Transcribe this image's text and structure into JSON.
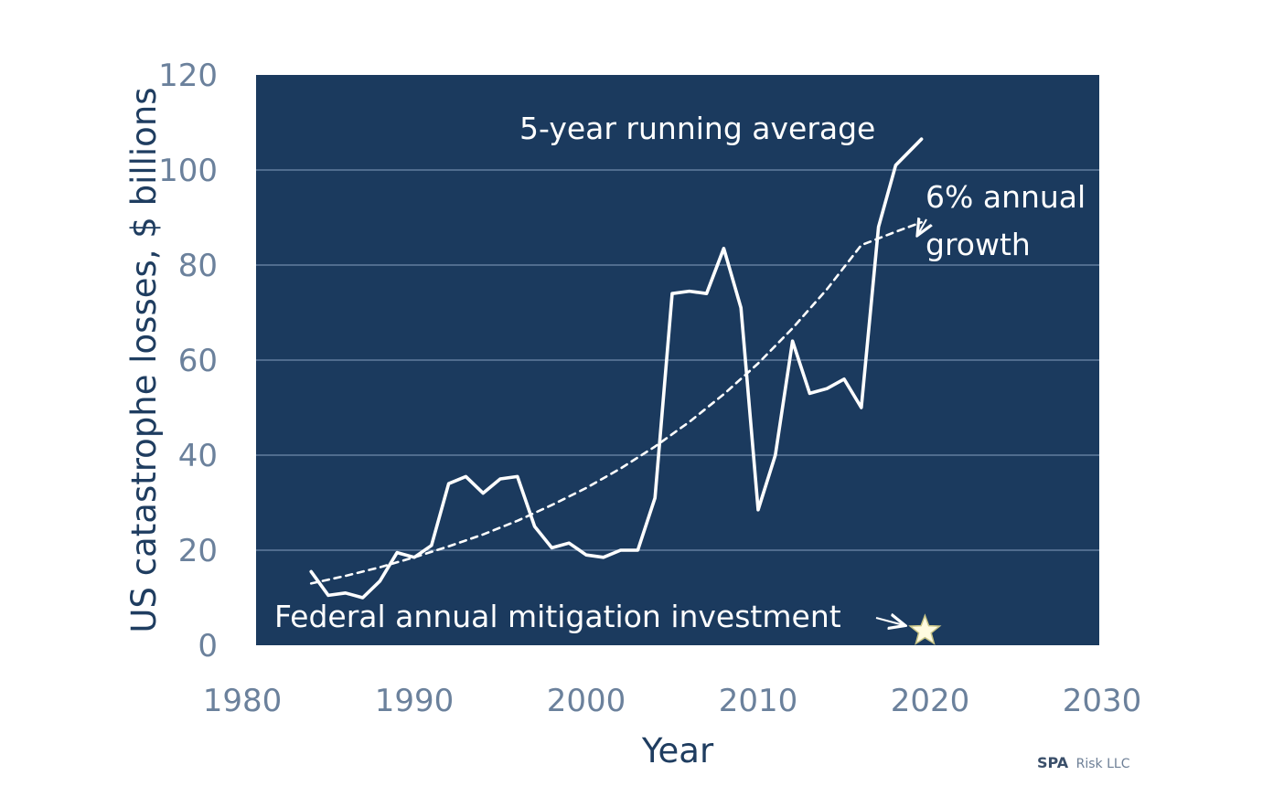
{
  "chart_data": {
    "type": "line",
    "xlabel": "Year",
    "ylabel": "US catastrophe losses, $ billions",
    "xlim": [
      1980,
      2030
    ],
    "ylim": [
      0,
      120
    ],
    "x_ticks": [
      "1980",
      "1990",
      "2000",
      "2010",
      "2020",
      "2030"
    ],
    "y_ticks": [
      "0",
      "20",
      "40",
      "60",
      "80",
      "100",
      "120"
    ],
    "grid": "horizontal",
    "background_color": "#1b3a5e",
    "series": [
      {
        "name": "5-year running average",
        "style": "solid",
        "color": "#ffffff",
        "x": [
          1984,
          1985,
          1986,
          1987,
          1988,
          1989,
          1990,
          1991,
          1992,
          1993,
          1994,
          1995,
          1996,
          1997,
          1998,
          1999,
          2000,
          2001,
          2002,
          2003,
          2004,
          2005,
          2006,
          2007,
          2008,
          2009,
          2010,
          2011,
          2012,
          2013,
          2014,
          2015,
          2016,
          2017,
          2018,
          2019.5
        ],
        "y": [
          15.5,
          10.5,
          11,
          10,
          13.5,
          19.5,
          18.5,
          21,
          34,
          35.5,
          32,
          35,
          35.5,
          25,
          20.5,
          21.5,
          19,
          18.5,
          20,
          20,
          31,
          74,
          74.5,
          74,
          83.5,
          71,
          28.5,
          40,
          64,
          53,
          54,
          56,
          50,
          88,
          101,
          106.5
        ]
      },
      {
        "name": "6% annual growth",
        "style": "dashed",
        "color": "#ffffff",
        "x": [
          1984,
          1986,
          1988,
          1990,
          1992,
          1994,
          1996,
          1998,
          2000,
          2002,
          2004,
          2006,
          2008,
          2010,
          2012,
          2014,
          2016,
          2018,
          2019.5
        ],
        "y": [
          13,
          14.6,
          16.4,
          18.5,
          20.8,
          23.3,
          26.2,
          29.5,
          33.1,
          37.2,
          41.8,
          47,
          52.8,
          59.3,
          66.7,
          74.9,
          84.2,
          87,
          89
        ]
      },
      {
        "name": "Federal annual mitigation investment",
        "style": "marker",
        "marker": "star",
        "color": "#fffbe0",
        "x": [
          2019.7
        ],
        "y": [
          3
        ]
      }
    ],
    "annotations": [
      "5-year running average",
      "6% annual growth",
      "Federal annual mitigation investment"
    ]
  },
  "labels": {
    "running_average": "5-year running average",
    "growth_line1": "6% annual",
    "growth_line2": "growth",
    "mitigation": "Federal annual mitigation investment"
  },
  "credit": {
    "bold": "SPA",
    "light": "Risk LLC"
  }
}
